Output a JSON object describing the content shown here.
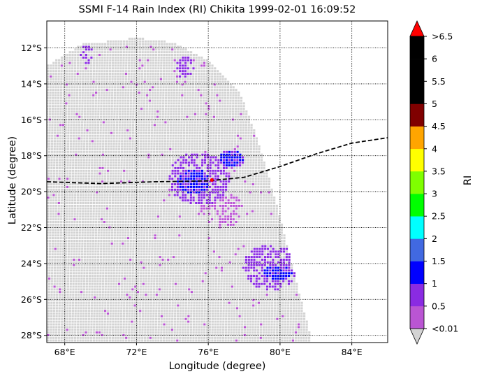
{
  "title": "SSMI F-14 Rain Index (RI) Chikita 1999-02-01 16:09:52",
  "xlabel": "Longitude (degree)",
  "ylabel": "Latitude (degree)",
  "colorbar_label": "RI",
  "x_ticks": [
    "68°E",
    "72°E",
    "76°E",
    "80°E",
    "84°E"
  ],
  "y_ticks": [
    "12°S",
    "14°S",
    "16°S",
    "18°S",
    "20°S",
    "22°S",
    "24°S",
    "26°S",
    "28°S"
  ],
  "colorbar": {
    "tick_labels": [
      "<0.01",
      "0.5",
      "1",
      "1.5",
      "2",
      "2.5",
      "3",
      "3.5",
      "4",
      "4.5",
      "5",
      "5.5",
      "6",
      ">6.5"
    ],
    "colors": [
      "#ba55d3",
      "#8a2be2",
      "#0000ff",
      "#4169e1",
      "#00ffff",
      "#00ff00",
      "#7fff00",
      "#ffff00",
      "#ffa500",
      "#800000",
      "#000000",
      "#000000",
      "#000000"
    ],
    "under_color": "#d3d3d3",
    "over_color": "#ff0000"
  },
  "chart_data": {
    "type": "heatmap",
    "title": "SSMI F-14 Rain Index (RI) Chikita 1999-02-01 16:09:52",
    "xlabel": "Longitude (degree)",
    "ylabel": "Latitude (degree)",
    "xlim": [
      67,
      86
    ],
    "ylim": [
      -28.4,
      -10.5
    ],
    "grid": true,
    "swath_no_rain_color": "#d3d3d3",
    "track": [
      [
        67,
        -19.45
      ],
      [
        70,
        -19.55
      ],
      [
        73,
        -19.45
      ],
      [
        76,
        -19.4
      ],
      [
        78,
        -19.2
      ],
      [
        80,
        -18.6
      ],
      [
        82,
        -17.9
      ],
      [
        84,
        -17.3
      ],
      [
        86,
        -17.0
      ]
    ],
    "storm_center": [
      76.2,
      -19.35
    ],
    "rain_regions": [
      {
        "lon": 75.5,
        "lat": -19.3,
        "rlon": 1.7,
        "rlat": 1.5,
        "ri": 0.5
      },
      {
        "lon": 75.2,
        "lat": -19.4,
        "rlon": 0.9,
        "rlat": 0.7,
        "ri": 1
      },
      {
        "lon": 77.3,
        "lat": -18.2,
        "rlon": 0.7,
        "rlat": 0.5,
        "ri": 1
      },
      {
        "lon": 79.5,
        "lat": -24.2,
        "rlon": 1.6,
        "rlat": 1.3,
        "ri": 0.5
      },
      {
        "lon": 79.9,
        "lat": -24.5,
        "rlon": 0.8,
        "rlat": 0.4,
        "ri": 1
      },
      {
        "lon": 69.2,
        "lat": -12.4,
        "rlon": 0.4,
        "rlat": 0.5,
        "ri": 0.5
      },
      {
        "lon": 74.7,
        "lat": -13.1,
        "rlon": 0.5,
        "rlat": 0.6,
        "ri": 0.5
      },
      {
        "lon": 76.8,
        "lat": -21.0,
        "rlon": 1.2,
        "rlat": 1.0,
        "ri": 0.01
      }
    ]
  }
}
